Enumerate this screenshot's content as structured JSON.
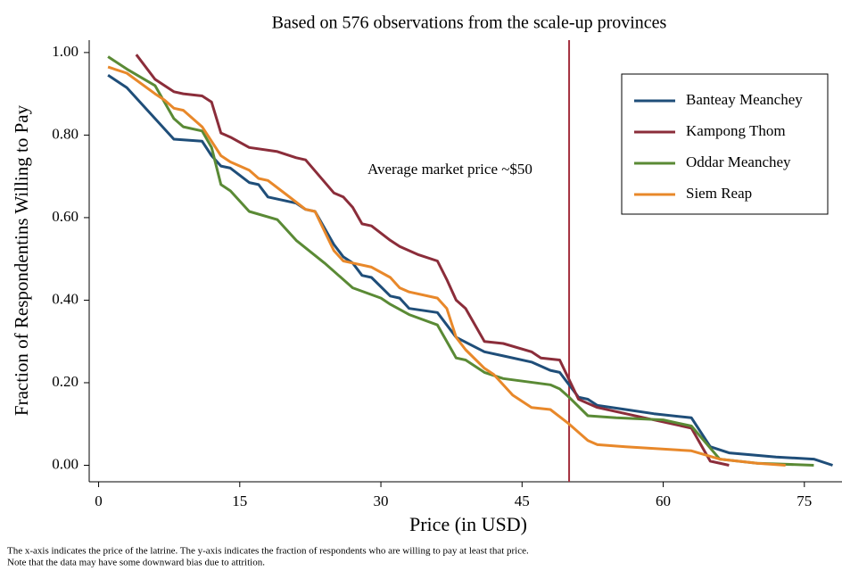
{
  "chart_data": {
    "type": "line",
    "title": "Based on 576 observations from the scale-up provinces",
    "x_label": "Price (in USD)",
    "y_label": "Fraction of Respondentins Willing to Pay",
    "footnote": [
      "The x-axis indicates the price of the latrine.  The y-axis indicates the fraction of respondents who are willing to pay at least that price.",
      "Note that the data may have some downward bias due to attrition."
    ],
    "xlim": [
      -1,
      79
    ],
    "ylim": [
      -0.04,
      1.03
    ],
    "xticks": [
      0,
      15,
      30,
      45,
      60,
      75
    ],
    "yticks": [
      {
        "value": 0,
        "label": "0.00"
      },
      {
        "value": 0.2,
        "label": "0.20"
      },
      {
        "value": 0.4,
        "label": "0.40"
      },
      {
        "value": 0.6,
        "label": "0.60"
      },
      {
        "value": 0.8,
        "label": "0.80"
      },
      {
        "value": 1,
        "label": "1.00"
      }
    ],
    "grid": false,
    "legend_position": "upper right",
    "vline": {
      "x": 50,
      "label": "Average market price ~$50",
      "color": "#a3303f"
    },
    "series": [
      {
        "name": "Banteay Meanchey",
        "color": "#1f4e79",
        "x": [
          1,
          3,
          6,
          7,
          8,
          11,
          12,
          13,
          14,
          16,
          17,
          18,
          21,
          22,
          23,
          25,
          26,
          27,
          28,
          29,
          31,
          32,
          33,
          36,
          37,
          38,
          41,
          43,
          46,
          48,
          49,
          51,
          52,
          53,
          56,
          59,
          63,
          65,
          67,
          72,
          76,
          78
        ],
        "values": [
          0.945,
          0.915,
          0.84,
          0.815,
          0.79,
          0.785,
          0.75,
          0.725,
          0.72,
          0.685,
          0.68,
          0.65,
          0.635,
          0.62,
          0.615,
          0.535,
          0.505,
          0.49,
          0.46,
          0.455,
          0.41,
          0.405,
          0.38,
          0.37,
          0.34,
          0.31,
          0.275,
          0.265,
          0.25,
          0.23,
          0.225,
          0.165,
          0.16,
          0.145,
          0.135,
          0.125,
          0.115,
          0.045,
          0.03,
          0.02,
          0.015,
          0
        ]
      },
      {
        "name": "Kampong Thom",
        "color": "#8b2d3a",
        "x": [
          4,
          6,
          7,
          8,
          9,
          11,
          12,
          13,
          14,
          16,
          19,
          21,
          22,
          25,
          26,
          27,
          28,
          29,
          31,
          32,
          34,
          36,
          37,
          38,
          39,
          41,
          43,
          46,
          47,
          49,
          51,
          53,
          58,
          62,
          63,
          65,
          67
        ],
        "values": [
          0.995,
          0.935,
          0.92,
          0.905,
          0.9,
          0.895,
          0.88,
          0.805,
          0.795,
          0.77,
          0.76,
          0.745,
          0.74,
          0.66,
          0.65,
          0.625,
          0.585,
          0.58,
          0.545,
          0.53,
          0.51,
          0.495,
          0.45,
          0.4,
          0.38,
          0.3,
          0.295,
          0.275,
          0.26,
          0.255,
          0.16,
          0.14,
          0.115,
          0.095,
          0.09,
          0.01,
          0
        ]
      },
      {
        "name": "Oddar Meanchey",
        "color": "#5a8a35",
        "x": [
          1,
          3,
          6,
          8,
          9,
          11,
          12,
          13,
          14,
          16,
          19,
          21,
          24,
          27,
          30,
          31,
          33,
          36,
          38,
          39,
          41,
          43,
          48,
          49,
          50,
          52,
          55,
          60,
          62,
          63,
          66,
          70,
          76
        ],
        "values": [
          0.99,
          0.96,
          0.92,
          0.84,
          0.82,
          0.81,
          0.77,
          0.68,
          0.665,
          0.615,
          0.595,
          0.545,
          0.49,
          0.43,
          0.405,
          0.39,
          0.365,
          0.34,
          0.26,
          0.255,
          0.225,
          0.21,
          0.195,
          0.185,
          0.165,
          0.12,
          0.115,
          0.11,
          0.1,
          0.095,
          0.015,
          0.005,
          0
        ]
      },
      {
        "name": "Siem Reap",
        "color": "#e8882a",
        "x": [
          1,
          3,
          6,
          7,
          8,
          9,
          11,
          13,
          14,
          16,
          17,
          18,
          20,
          22,
          23,
          25,
          26,
          27,
          29,
          31,
          32,
          33,
          36,
          37,
          38,
          39,
          41,
          42,
          44,
          46,
          48,
          50,
          52,
          53,
          56,
          63,
          66,
          70,
          73
        ],
        "values": [
          0.965,
          0.95,
          0.9,
          0.885,
          0.865,
          0.86,
          0.82,
          0.75,
          0.735,
          0.715,
          0.695,
          0.69,
          0.655,
          0.62,
          0.615,
          0.52,
          0.495,
          0.49,
          0.48,
          0.455,
          0.43,
          0.42,
          0.405,
          0.38,
          0.31,
          0.28,
          0.235,
          0.22,
          0.17,
          0.14,
          0.135,
          0.1,
          0.06,
          0.05,
          0.045,
          0.035,
          0.015,
          0.005,
          0
        ]
      }
    ]
  }
}
